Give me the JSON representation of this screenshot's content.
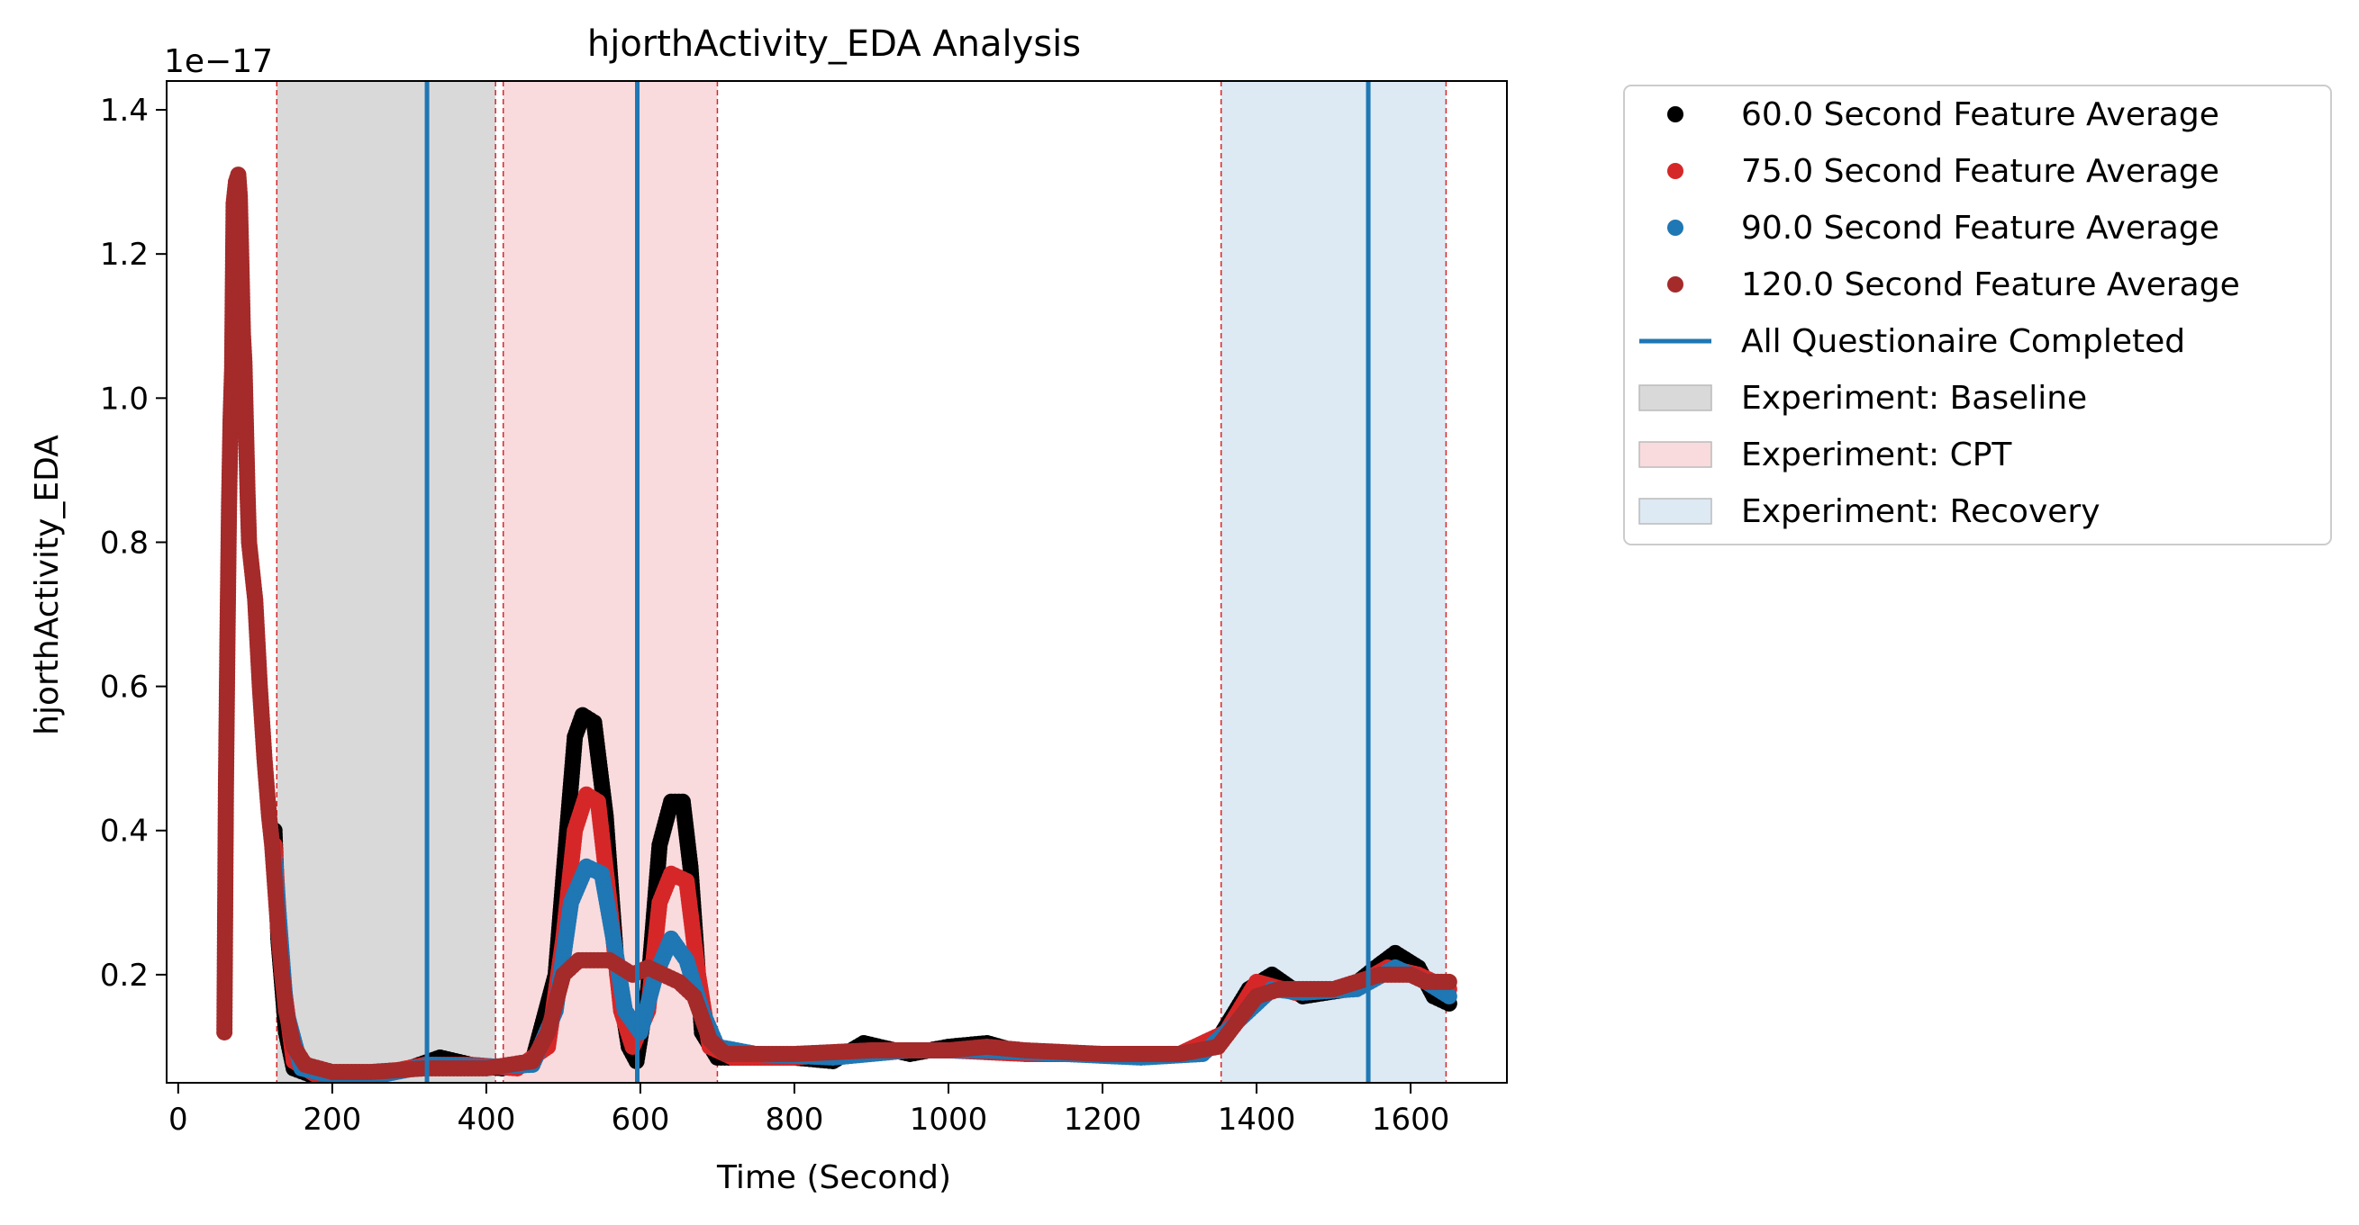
{
  "chart_data": {
    "type": "scatter",
    "title": "hjorthActivity_EDA Analysis",
    "xlabel": "Time (Second)",
    "ylabel": "hjorthActivity_EDA",
    "y_offset_label": "1e−17",
    "xlim": [
      -15,
      1725
    ],
    "ylim": [
      0.05,
      1.44
    ],
    "xticks": [
      0,
      200,
      400,
      600,
      800,
      1000,
      1200,
      1400,
      1600
    ],
    "xtick_labels": [
      "0",
      "200",
      "400",
      "600",
      "800",
      "1000",
      "1200",
      "1400",
      "1600"
    ],
    "yticks": [
      0.2,
      0.4,
      0.6,
      0.8,
      1.0,
      1.2,
      1.4
    ],
    "ytick_labels": [
      "0.2",
      "0.4",
      "0.6",
      "0.8",
      "1.0",
      "1.2",
      "1.4"
    ],
    "legend_position": "outside-right",
    "series": [
      {
        "name": "60.0 Second Feature Average",
        "color": "#000000",
        "points": [
          [
            125,
            0.4
          ],
          [
            130,
            0.25
          ],
          [
            140,
            0.12
          ],
          [
            150,
            0.07
          ],
          [
            175,
            0.06
          ],
          [
            250,
            0.06
          ],
          [
            300,
            0.07
          ],
          [
            340,
            0.085
          ],
          [
            380,
            0.075
          ],
          [
            420,
            0.07
          ],
          [
            460,
            0.08
          ],
          [
            490,
            0.2
          ],
          [
            505,
            0.4
          ],
          [
            515,
            0.53
          ],
          [
            525,
            0.56
          ],
          [
            540,
            0.55
          ],
          [
            555,
            0.42
          ],
          [
            570,
            0.2
          ],
          [
            585,
            0.1
          ],
          [
            595,
            0.08
          ],
          [
            610,
            0.18
          ],
          [
            625,
            0.38
          ],
          [
            640,
            0.44
          ],
          [
            655,
            0.44
          ],
          [
            665,
            0.35
          ],
          [
            680,
            0.12
          ],
          [
            700,
            0.085
          ],
          [
            800,
            0.085
          ],
          [
            850,
            0.08
          ],
          [
            890,
            0.105
          ],
          [
            950,
            0.09
          ],
          [
            1000,
            0.1
          ],
          [
            1050,
            0.105
          ],
          [
            1100,
            0.09
          ],
          [
            1200,
            0.09
          ],
          [
            1300,
            0.09
          ],
          [
            1350,
            0.11
          ],
          [
            1390,
            0.18
          ],
          [
            1420,
            0.2
          ],
          [
            1460,
            0.17
          ],
          [
            1520,
            0.18
          ],
          [
            1555,
            0.21
          ],
          [
            1580,
            0.23
          ],
          [
            1610,
            0.21
          ],
          [
            1630,
            0.17
          ],
          [
            1650,
            0.16
          ]
        ]
      },
      {
        "name": "75.0 Second Feature Average",
        "color": "#d62728",
        "points": [
          [
            125,
            0.38
          ],
          [
            135,
            0.2
          ],
          [
            150,
            0.08
          ],
          [
            180,
            0.06
          ],
          [
            250,
            0.06
          ],
          [
            320,
            0.075
          ],
          [
            380,
            0.075
          ],
          [
            440,
            0.07
          ],
          [
            480,
            0.1
          ],
          [
            500,
            0.25
          ],
          [
            515,
            0.4
          ],
          [
            530,
            0.45
          ],
          [
            545,
            0.44
          ],
          [
            560,
            0.3
          ],
          [
            575,
            0.15
          ],
          [
            590,
            0.1
          ],
          [
            610,
            0.15
          ],
          [
            625,
            0.3
          ],
          [
            640,
            0.34
          ],
          [
            660,
            0.33
          ],
          [
            675,
            0.2
          ],
          [
            690,
            0.1
          ],
          [
            720,
            0.085
          ],
          [
            800,
            0.085
          ],
          [
            900,
            0.095
          ],
          [
            1000,
            0.095
          ],
          [
            1100,
            0.09
          ],
          [
            1200,
            0.09
          ],
          [
            1300,
            0.09
          ],
          [
            1360,
            0.12
          ],
          [
            1400,
            0.19
          ],
          [
            1450,
            0.175
          ],
          [
            1520,
            0.18
          ],
          [
            1570,
            0.21
          ],
          [
            1610,
            0.2
          ],
          [
            1650,
            0.18
          ]
        ]
      },
      {
        "name": "90.0 Second Feature Average",
        "color": "#1f77b4",
        "points": [
          [
            125,
            0.36
          ],
          [
            140,
            0.15
          ],
          [
            160,
            0.07
          ],
          [
            200,
            0.06
          ],
          [
            260,
            0.06
          ],
          [
            330,
            0.075
          ],
          [
            400,
            0.072
          ],
          [
            460,
            0.075
          ],
          [
            490,
            0.15
          ],
          [
            510,
            0.3
          ],
          [
            530,
            0.35
          ],
          [
            550,
            0.34
          ],
          [
            565,
            0.25
          ],
          [
            580,
            0.15
          ],
          [
            600,
            0.12
          ],
          [
            620,
            0.2
          ],
          [
            640,
            0.25
          ],
          [
            660,
            0.22
          ],
          [
            680,
            0.15
          ],
          [
            700,
            0.1
          ],
          [
            750,
            0.09
          ],
          [
            850,
            0.085
          ],
          [
            950,
            0.095
          ],
          [
            1050,
            0.095
          ],
          [
            1150,
            0.09
          ],
          [
            1250,
            0.085
          ],
          [
            1330,
            0.09
          ],
          [
            1380,
            0.14
          ],
          [
            1420,
            0.18
          ],
          [
            1460,
            0.175
          ],
          [
            1530,
            0.18
          ],
          [
            1580,
            0.21
          ],
          [
            1620,
            0.19
          ],
          [
            1650,
            0.17
          ]
        ]
      },
      {
        "name": "120.0 Second Feature Average",
        "color": "#a52a2a",
        "points": [
          [
            60,
            0.12
          ],
          [
            62,
            0.46
          ],
          [
            64,
            0.67
          ],
          [
            66,
            0.85
          ],
          [
            68,
            0.97
          ],
          [
            70,
            1.04
          ],
          [
            72,
            1.27
          ],
          [
            75,
            1.3
          ],
          [
            78,
            1.31
          ],
          [
            80,
            1.28
          ],
          [
            82,
            1.19
          ],
          [
            84,
            1.09
          ],
          [
            86,
            1.05
          ],
          [
            88,
            0.96
          ],
          [
            90,
            0.87
          ],
          [
            92,
            0.8
          ],
          [
            95,
            0.77
          ],
          [
            98,
            0.74
          ],
          [
            100,
            0.72
          ],
          [
            103,
            0.66
          ],
          [
            106,
            0.6
          ],
          [
            109,
            0.55
          ],
          [
            112,
            0.5
          ],
          [
            115,
            0.46
          ],
          [
            118,
            0.42
          ],
          [
            122,
            0.38
          ],
          [
            126,
            0.32
          ],
          [
            130,
            0.26
          ],
          [
            135,
            0.2
          ],
          [
            140,
            0.15
          ],
          [
            150,
            0.1
          ],
          [
            165,
            0.075
          ],
          [
            200,
            0.065
          ],
          [
            250,
            0.065
          ],
          [
            320,
            0.07
          ],
          [
            400,
            0.07
          ],
          [
            460,
            0.08
          ],
          [
            480,
            0.12
          ],
          [
            500,
            0.2
          ],
          [
            520,
            0.22
          ],
          [
            560,
            0.22
          ],
          [
            590,
            0.2
          ],
          [
            610,
            0.21
          ],
          [
            630,
            0.2
          ],
          [
            650,
            0.19
          ],
          [
            670,
            0.17
          ],
          [
            690,
            0.11
          ],
          [
            710,
            0.09
          ],
          [
            800,
            0.09
          ],
          [
            900,
            0.095
          ],
          [
            1000,
            0.095
          ],
          [
            1050,
            0.1
          ],
          [
            1100,
            0.095
          ],
          [
            1200,
            0.09
          ],
          [
            1300,
            0.09
          ],
          [
            1350,
            0.1
          ],
          [
            1400,
            0.17
          ],
          [
            1430,
            0.18
          ],
          [
            1500,
            0.18
          ],
          [
            1560,
            0.2
          ],
          [
            1600,
            0.2
          ],
          [
            1620,
            0.19
          ],
          [
            1650,
            0.19
          ]
        ]
      }
    ],
    "vlines": {
      "name": "All Questionaire Completed",
      "color": "#1f77b4",
      "x": [
        323,
        596,
        1545
      ]
    },
    "spans": [
      {
        "name": "Experiment: Baseline",
        "start": 128,
        "end": 412,
        "color": "#d9d9d9"
      },
      {
        "name": "Experiment: CPT",
        "start": 422,
        "end": 700,
        "color": "#f9dbdd"
      },
      {
        "name": "Experiment: Recovery",
        "start": 1354,
        "end": 1646,
        "color": "#dde9f3"
      }
    ],
    "span_boundary_color": "#d62728",
    "legend_entries": [
      {
        "label": "60.0 Second Feature Average",
        "kind": "marker",
        "color": "#000000"
      },
      {
        "label": "75.0 Second Feature Average",
        "kind": "marker",
        "color": "#d62728"
      },
      {
        "label": "90.0 Second Feature Average",
        "kind": "marker",
        "color": "#1f77b4"
      },
      {
        "label": "120.0 Second Feature Average",
        "kind": "marker",
        "color": "#a52a2a"
      },
      {
        "label": "All Questionaire Completed",
        "kind": "line",
        "color": "#1f77b4"
      },
      {
        "label": "Experiment: Baseline",
        "kind": "patch",
        "color": "#d9d9d9"
      },
      {
        "label": "Experiment: CPT",
        "kind": "patch",
        "color": "#f9dbdd"
      },
      {
        "label": "Experiment: Recovery",
        "kind": "patch",
        "color": "#dde9f3"
      }
    ]
  }
}
